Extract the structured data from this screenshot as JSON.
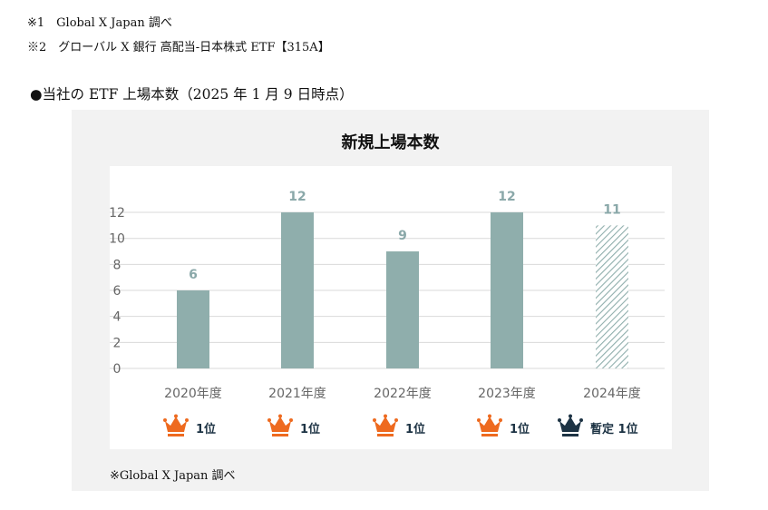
{
  "notes": [
    "※1　Global X Japan 調べ",
    "※2　グローバル X 銀行 高配当-日本株式 ETF【315A】"
  ],
  "section_title": "●当社の ETF 上場本数（2025 年 1 月 9 日時点）",
  "footnote": "※Global X Japan 調べ",
  "colors": {
    "bar": "#8faeac",
    "hatch": "#8faeac",
    "data_label": "#8aa8a9",
    "crown_orange": "#ee6a1f",
    "crown_dark": "#1d3344",
    "grid": "#d9d9d9"
  },
  "chart_data": {
    "type": "bar",
    "title": "新規上場本数",
    "categories": [
      "2020年度",
      "2021年度",
      "2022年度",
      "2023年度",
      "2024年度"
    ],
    "values": [
      6,
      12,
      9,
      12,
      11
    ],
    "data_labels": [
      "6",
      "12",
      "9",
      "12",
      "11"
    ],
    "ylim": [
      0,
      12
    ],
    "yticks": [
      0,
      2,
      4,
      6,
      8,
      10,
      12
    ],
    "grid": true,
    "hatched": [
      false,
      false,
      false,
      false,
      true
    ],
    "rank_labels": [
      "1位",
      "1位",
      "1位",
      "1位",
      "暫定 1位"
    ],
    "rank_icons": [
      "crown-orange-icon",
      "crown-orange-icon",
      "crown-orange-icon",
      "crown-orange-icon",
      "crown-dark-icon"
    ]
  }
}
